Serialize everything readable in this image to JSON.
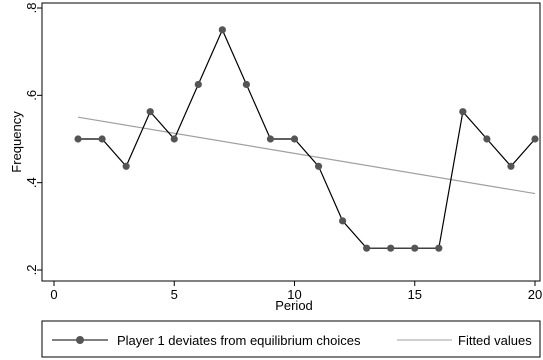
{
  "chart_data": {
    "type": "line",
    "xlabel": "Period",
    "ylabel": "Frequency",
    "xlim": [
      0,
      20
    ],
    "ylim": [
      0.2,
      0.8
    ],
    "x_ticks": [
      0,
      5,
      10,
      15,
      20
    ],
    "x_tick_labels": [
      "0",
      "5",
      "10",
      "15",
      "20"
    ],
    "y_ticks": [
      0.2,
      0.4,
      0.6,
      0.8
    ],
    "y_tick_labels": [
      ".2",
      ".4",
      ".6",
      ".8"
    ],
    "grid": false,
    "legend_position": "bottom",
    "series": [
      {
        "name": "Player 1 deviates from equilibrium choices",
        "kind": "line-with-markers",
        "color": "#000000",
        "marker_color": "#555555",
        "x": [
          1,
          2,
          3,
          4,
          5,
          6,
          7,
          8,
          9,
          10,
          11,
          12,
          13,
          14,
          15,
          16,
          17,
          18,
          19,
          20
        ],
        "y": [
          0.5,
          0.5,
          0.4375,
          0.5625,
          0.5,
          0.625,
          0.75,
          0.625,
          0.5,
          0.5,
          0.4375,
          0.3125,
          0.25,
          0.25,
          0.25,
          0.25,
          0.5625,
          0.5,
          0.4375,
          0.5
        ]
      },
      {
        "name": "Fitted values",
        "kind": "line",
        "color": "#a0a0a0",
        "x": [
          1,
          20
        ],
        "y": [
          0.55,
          0.375
        ]
      }
    ]
  }
}
